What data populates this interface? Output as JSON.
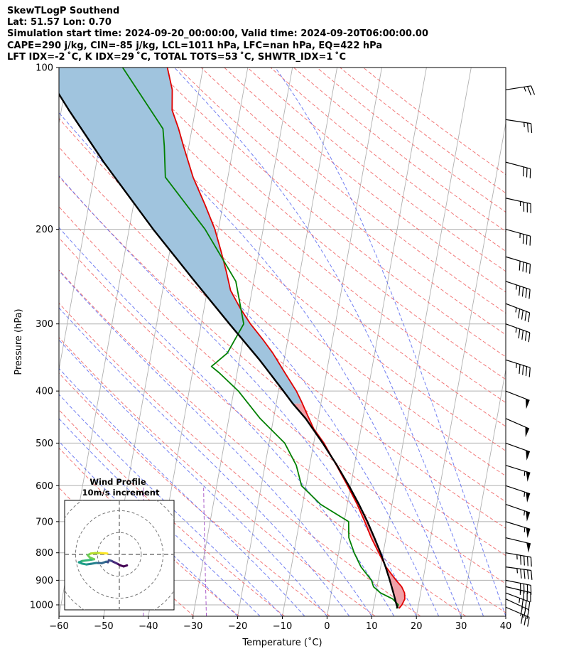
{
  "header": {
    "line1": "SkewTLogP Southend",
    "line2": "Lat: 51.57   Lon: 0.70",
    "line3": "Simulation start time: 2024-09-20_00:00:00, Valid time: 2024-09-20T06:00:00.00",
    "line4": "CAPE=290 j/kg, CIN=-85 j/kg, LCL=1011 hPa, LFC=nan hPa, EQ=422 hPa",
    "line5": "LFT IDX=-2 ˚C, K IDX=29 ˚C, TOTAL TOTS=53 ˚C, SHWTR_IDX=1 ˚C"
  },
  "chart_data": {
    "type": "line",
    "subtype": "skew-t log-p",
    "xlabel": "Temperature (˚C)",
    "ylabel": "Pressure (hPa)",
    "xlim": [
      -60,
      40
    ],
    "ylim": [
      1050,
      100
    ],
    "y_scale": "log",
    "x_ticks": [
      "−60",
      "−50",
      "−40",
      "−30",
      "−20",
      "−10",
      "0",
      "10",
      "20",
      "30",
      "40"
    ],
    "y_ticks": [
      "100",
      "200",
      "300",
      "400",
      "500",
      "600",
      "700",
      "800",
      "900",
      "1000"
    ],
    "grid": true,
    "colors": {
      "temperature": "#e00000",
      "dewpoint": "#008000",
      "parcel": "#000000",
      "cape_fill": "#a0c4de",
      "cin_fill": "#f0a0a8",
      "dry_adiabat": "#f06060",
      "moist_adiabat": "#5a6af0",
      "mixing_ratio": "#9a40c0",
      "isotherm": "#b0b0b0"
    },
    "series": [
      {
        "key": "temperature",
        "points": [
          [
            1015,
            15.8
          ],
          [
            1000,
            16.3
          ],
          [
            975,
            16.7
          ],
          [
            950,
            16.4
          ],
          [
            925,
            15.5
          ],
          [
            900,
            14.0
          ],
          [
            850,
            11.2
          ],
          [
            800,
            9.0
          ],
          [
            750,
            6.7
          ],
          [
            700,
            4.6
          ],
          [
            650,
            2.2
          ],
          [
            600,
            -0.7
          ],
          [
            550,
            -4.0
          ],
          [
            500,
            -7.7
          ],
          [
            470,
            -10.6
          ],
          [
            440,
            -12.8
          ],
          [
            420,
            -14.3
          ],
          [
            400,
            -16.0
          ],
          [
            370,
            -19.3
          ],
          [
            340,
            -22.8
          ],
          [
            320,
            -25.7
          ],
          [
            300,
            -29.0
          ],
          [
            280,
            -32.0
          ],
          [
            260,
            -34.8
          ],
          [
            240,
            -36.5
          ],
          [
            220,
            -38.5
          ],
          [
            200,
            -40.8
          ],
          [
            180,
            -44.0
          ],
          [
            160,
            -47.8
          ],
          [
            140,
            -51.2
          ],
          [
            130,
            -53.0
          ],
          [
            120,
            -55.2
          ],
          [
            110,
            -56.0
          ],
          [
            100,
            -58.0
          ]
        ]
      },
      {
        "key": "dewpoint",
        "points": [
          [
            1015,
            15.2
          ],
          [
            1000,
            15.5
          ],
          [
            975,
            14.0
          ],
          [
            950,
            11.0
          ],
          [
            925,
            9.2
          ],
          [
            900,
            8.5
          ],
          [
            850,
            5.6
          ],
          [
            800,
            3.5
          ],
          [
            750,
            1.7
          ],
          [
            700,
            1.0
          ],
          [
            650,
            -6.0
          ],
          [
            600,
            -11.0
          ],
          [
            550,
            -13.0
          ],
          [
            500,
            -16.5
          ],
          [
            450,
            -23.0
          ],
          [
            400,
            -29.0
          ],
          [
            370,
            -34.0
          ],
          [
            360,
            -36.0
          ],
          [
            340,
            -33.0
          ],
          [
            300,
            -30.5
          ],
          [
            250,
            -34.0
          ],
          [
            200,
            -43.0
          ],
          [
            170,
            -51.0
          ],
          [
            160,
            -54.0
          ],
          [
            140,
            -55.5
          ],
          [
            130,
            -56.5
          ],
          [
            100,
            -68.0
          ]
        ]
      },
      {
        "key": "parcel",
        "points": [
          [
            1015,
            15.5
          ],
          [
            1000,
            15.1
          ],
          [
            950,
            13.9
          ],
          [
            900,
            12.6
          ],
          [
            850,
            11.1
          ],
          [
            800,
            9.4
          ],
          [
            750,
            7.4
          ],
          [
            700,
            5.2
          ],
          [
            650,
            2.6
          ],
          [
            600,
            -0.4
          ],
          [
            550,
            -3.9
          ],
          [
            500,
            -8.0
          ],
          [
            450,
            -12.8
          ],
          [
            422,
            -16.3
          ],
          [
            400,
            -18.9
          ],
          [
            350,
            -25.5
          ],
          [
            300,
            -33.7
          ],
          [
            250,
            -43.2
          ],
          [
            200,
            -54.6
          ],
          [
            150,
            -68.4
          ],
          [
            120,
            -78.3
          ],
          [
            100,
            -86.0
          ]
        ]
      }
    ],
    "wind_barbs": [
      {
        "p": 1010,
        "u": -14,
        "v": 6
      },
      {
        "p": 975,
        "u": -15,
        "v": 7
      },
      {
        "p": 950,
        "u": -16,
        "v": 6
      },
      {
        "p": 925,
        "u": -17,
        "v": 4
      },
      {
        "p": 900,
        "u": -20,
        "v": 4
      },
      {
        "p": 850,
        "u": -22,
        "v": 3
      },
      {
        "p": 800,
        "u": -23,
        "v": 4
      },
      {
        "p": 750,
        "u": -25,
        "v": 6
      },
      {
        "p": 700,
        "u": -26,
        "v": 8
      },
      {
        "p": 650,
        "u": -26,
        "v": 9
      },
      {
        "p": 600,
        "u": -27,
        "v": 9
      },
      {
        "p": 550,
        "u": -26,
        "v": 8
      },
      {
        "p": 500,
        "u": -25,
        "v": 9
      },
      {
        "p": 450,
        "u": -23,
        "v": 10
      },
      {
        "p": 400,
        "u": -23,
        "v": 9
      },
      {
        "p": 350,
        "u": -22,
        "v": 7
      },
      {
        "p": 300,
        "u": -22,
        "v": 8
      },
      {
        "p": 275,
        "u": -21,
        "v": 8
      },
      {
        "p": 250,
        "u": -21,
        "v": 7
      },
      {
        "p": 225,
        "u": -20,
        "v": 6
      },
      {
        "p": 200,
        "u": -18,
        "v": 5
      },
      {
        "p": 175,
        "u": -18,
        "v": 4
      },
      {
        "p": 150,
        "u": -15,
        "v": 4
      },
      {
        "p": 125,
        "u": -13,
        "v": 2
      },
      {
        "p": 110,
        "u": -13,
        "v": -2
      }
    ],
    "hodograph": {
      "title": "Wind Profile",
      "subtitle": "10m/s increment",
      "range": [
        -25,
        25
      ],
      "rings": [
        10,
        20,
        30
      ],
      "points": [
        [
          3.5,
          -5.0
        ],
        [
          2.0,
          -5.5
        ],
        [
          0.5,
          -5.0
        ],
        [
          -1.0,
          -4.2
        ],
        [
          -2.5,
          -3.5
        ],
        [
          -3.5,
          -3.0
        ],
        [
          -4.8,
          -2.6
        ],
        [
          -5.2,
          -3.6
        ],
        [
          -6.0,
          -3.3
        ],
        [
          -8.0,
          -4.0
        ],
        [
          -10.5,
          -3.9
        ],
        [
          -13.0,
          -4.3
        ],
        [
          -15.0,
          -4.6
        ],
        [
          -17.0,
          -4.2
        ],
        [
          -18.5,
          -3.6
        ],
        [
          -17.0,
          -3.0
        ],
        [
          -14.0,
          -2.6
        ],
        [
          -11.5,
          -2.2
        ],
        [
          -13.5,
          -1.4
        ],
        [
          -14.5,
          -0.3
        ],
        [
          -13.0,
          0.4
        ],
        [
          -11.0,
          0.6
        ],
        [
          -8.5,
          0.6
        ],
        [
          -6.5,
          0.5
        ],
        [
          -5.5,
          0.4
        ]
      ],
      "colors": [
        "#440154",
        "#482878",
        "#3e4a89",
        "#31688e",
        "#26828e",
        "#1f9e89",
        "#35b779",
        "#6ece58",
        "#b5de2b",
        "#fde725"
      ]
    }
  }
}
